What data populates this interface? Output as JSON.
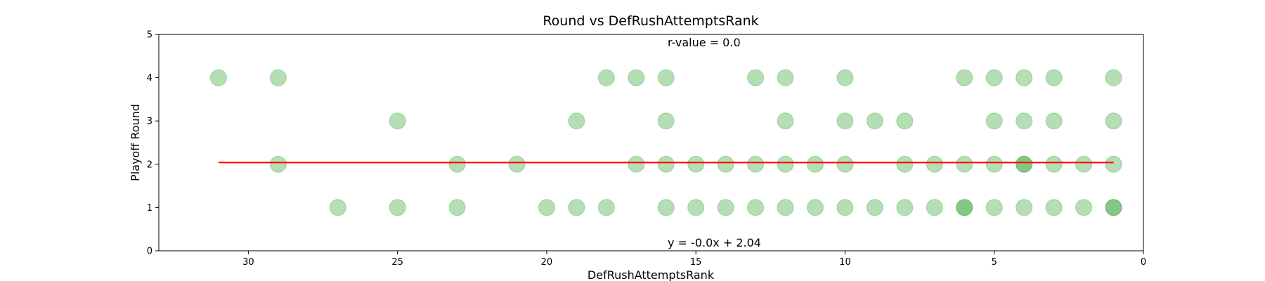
{
  "chart_data": {
    "type": "scatter",
    "title": "Round vs DefRushAttemptsRank",
    "xlabel": "DefRushAttemptsRank",
    "ylabel": "Playoff Round",
    "xlim": [
      33,
      0
    ],
    "ylim": [
      0,
      5
    ],
    "x_ticks": [
      30,
      25,
      20,
      15,
      10,
      5,
      0
    ],
    "y_ticks": [
      0,
      1,
      2,
      3,
      4,
      5
    ],
    "grid": false,
    "point_color": "#2ca02c",
    "point_alpha": 0.35,
    "points": [
      [
        31,
        4
      ],
      [
        29,
        4
      ],
      [
        29,
        2
      ],
      [
        27,
        1
      ],
      [
        25,
        3
      ],
      [
        25,
        1
      ],
      [
        23,
        2
      ],
      [
        23,
        1
      ],
      [
        21,
        2
      ],
      [
        20,
        1
      ],
      [
        19,
        3
      ],
      [
        19,
        1
      ],
      [
        18,
        4
      ],
      [
        18,
        1
      ],
      [
        17,
        4
      ],
      [
        17,
        2
      ],
      [
        16,
        4
      ],
      [
        16,
        3
      ],
      [
        16,
        2
      ],
      [
        16,
        1
      ],
      [
        15,
        2
      ],
      [
        15,
        1
      ],
      [
        14,
        2
      ],
      [
        14,
        1
      ],
      [
        13,
        4
      ],
      [
        13,
        2
      ],
      [
        13,
        1
      ],
      [
        12,
        4
      ],
      [
        12,
        3
      ],
      [
        12,
        2
      ],
      [
        12,
        1
      ],
      [
        11,
        2
      ],
      [
        11,
        1
      ],
      [
        10,
        4
      ],
      [
        10,
        3
      ],
      [
        10,
        2
      ],
      [
        10,
        1
      ],
      [
        9,
        3
      ],
      [
        9,
        1
      ],
      [
        8,
        3
      ],
      [
        8,
        2
      ],
      [
        8,
        1
      ],
      [
        7,
        2
      ],
      [
        7,
        1
      ],
      [
        6,
        4
      ],
      [
        6,
        2
      ],
      [
        6,
        1
      ],
      [
        6,
        1
      ],
      [
        5,
        4
      ],
      [
        5,
        3
      ],
      [
        5,
        2
      ],
      [
        5,
        1
      ],
      [
        4,
        4
      ],
      [
        4,
        3
      ],
      [
        4,
        2
      ],
      [
        4,
        2
      ],
      [
        4,
        1
      ],
      [
        3,
        4
      ],
      [
        3,
        3
      ],
      [
        3,
        2
      ],
      [
        3,
        1
      ],
      [
        2,
        2
      ],
      [
        2,
        1
      ],
      [
        1,
        4
      ],
      [
        1,
        3
      ],
      [
        1,
        2
      ],
      [
        1,
        1
      ],
      [
        1,
        1
      ]
    ],
    "regression": {
      "x_range": [
        31,
        1
      ],
      "slope": 0.0,
      "intercept": 2.04,
      "color": "#ff0000",
      "equation_label": "y = -0.0x + 2.04",
      "equation_color": "#ff0000",
      "r_label": "r-value = 0.0",
      "r_color": "#800080"
    }
  }
}
